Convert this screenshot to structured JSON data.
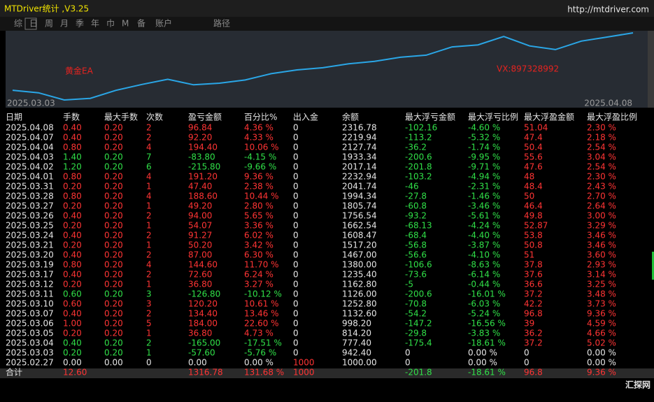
{
  "window": {
    "title": "MTDriver统计 ,V3.25",
    "url": "http://mtdriver.com"
  },
  "tabs": [
    "综",
    "日",
    "周",
    "月",
    "季",
    "年",
    "巾",
    "M",
    "备",
    "账户"
  ],
  "path_label": "路径",
  "chart": {
    "annotation_left": "黄金EA",
    "annotation_right": "VX:897328992",
    "start_date": "2025.03.03",
    "end_date": "2025.04.08"
  },
  "colors": {
    "profit": "#ff3434",
    "loss": "#30e048",
    "neutral": "#e6e6e6",
    "line": "#2aa6e6"
  },
  "table": {
    "header": [
      "日期",
      "手数",
      "最大手数",
      "次数",
      "盈亏金额",
      "百分比%",
      "出入金",
      "余额",
      "最大浮亏金额",
      "最大浮亏比例",
      "最大浮盈金额",
      "最大浮盈比例"
    ],
    "rows": [
      [
        "2025.04.08",
        "0.40",
        "0.20",
        "2",
        "96.84",
        "4.36 %",
        "0",
        "2316.78",
        "-102.16",
        "-4.60 %",
        "51.04",
        "2.30 %"
      ],
      [
        "2025.04.07",
        "0.40",
        "0.20",
        "2",
        "92.20",
        "4.33 %",
        "0",
        "2219.94",
        "-113.2",
        "-5.32 %",
        "47.4",
        "2.18 %"
      ],
      [
        "2025.04.04",
        "0.80",
        "0.20",
        "4",
        "194.40",
        "10.06 %",
        "0",
        "2127.74",
        "-36.2",
        "-1.74 %",
        "50.4",
        "2.54 %"
      ],
      [
        "2025.04.03",
        "1.40",
        "0.20",
        "7",
        "-83.80",
        "-4.15 %",
        "0",
        "1933.34",
        "-200.6",
        "-9.95 %",
        "55.6",
        "3.04 %"
      ],
      [
        "2025.04.02",
        "1.20",
        "0.20",
        "6",
        "-215.80",
        "-9.66 %",
        "0",
        "2017.14",
        "-201.8",
        "-9.71 %",
        "47.6",
        "2.54 %"
      ],
      [
        "2025.04.01",
        "0.80",
        "0.20",
        "4",
        "191.20",
        "9.36 %",
        "0",
        "2232.94",
        "-103.2",
        "-4.94 %",
        "48",
        "2.30 %"
      ],
      [
        "2025.03.31",
        "0.20",
        "0.20",
        "1",
        "47.40",
        "2.38 %",
        "0",
        "2041.74",
        "-46",
        "-2.31 %",
        "48.4",
        "2.43 %"
      ],
      [
        "2025.03.28",
        "0.80",
        "0.20",
        "4",
        "188.60",
        "10.44 %",
        "0",
        "1994.34",
        "-27.8",
        "-1.46 %",
        "50",
        "2.70 %"
      ],
      [
        "2025.03.27",
        "0.20",
        "0.20",
        "1",
        "49.20",
        "2.80 %",
        "0",
        "1805.74",
        "-60.8",
        "-3.46 %",
        "46.4",
        "2.64 %"
      ],
      [
        "2025.03.26",
        "0.40",
        "0.20",
        "2",
        "94.00",
        "5.65 %",
        "0",
        "1756.54",
        "-93.2",
        "-5.61 %",
        "49.8",
        "3.00 %"
      ],
      [
        "2025.03.25",
        "0.20",
        "0.20",
        "1",
        "54.07",
        "3.36 %",
        "0",
        "1662.54",
        "-68.13",
        "-4.24 %",
        "52.87",
        "3.29 %"
      ],
      [
        "2025.03.24",
        "0.40",
        "0.20",
        "2",
        "91.27",
        "6.02 %",
        "0",
        "1608.47",
        "-68.4",
        "-4.40 %",
        "53.8",
        "3.46 %"
      ],
      [
        "2025.03.21",
        "0.20",
        "0.20",
        "1",
        "50.20",
        "3.42 %",
        "0",
        "1517.20",
        "-56.8",
        "-3.87 %",
        "50.8",
        "3.46 %"
      ],
      [
        "2025.03.20",
        "0.40",
        "0.20",
        "2",
        "87.00",
        "6.30 %",
        "0",
        "1467.00",
        "-56.6",
        "-4.10 %",
        "51",
        "3.60 %"
      ],
      [
        "2025.03.19",
        "0.80",
        "0.20",
        "4",
        "144.60",
        "11.70 %",
        "0",
        "1380.00",
        "-106.6",
        "-8.63 %",
        "37.8",
        "2.93 %"
      ],
      [
        "2025.03.17",
        "0.40",
        "0.20",
        "2",
        "72.60",
        "6.24 %",
        "0",
        "1235.40",
        "-73.6",
        "-6.14 %",
        "37.6",
        "3.14 %"
      ],
      [
        "2025.03.12",
        "0.20",
        "0.20",
        "1",
        "36.80",
        "3.27 %",
        "0",
        "1162.80",
        "-5",
        "-0.44 %",
        "36.6",
        "3.25 %"
      ],
      [
        "2025.03.11",
        "0.60",
        "0.20",
        "3",
        "-126.80",
        "-10.12 %",
        "0",
        "1126.00",
        "-200.6",
        "-16.01 %",
        "37.2",
        "3.48 %"
      ],
      [
        "2025.03.10",
        "0.60",
        "0.20",
        "3",
        "120.20",
        "10.61 %",
        "0",
        "1252.80",
        "-70.8",
        "-6.03 %",
        "42.2",
        "3.73 %"
      ],
      [
        "2025.03.07",
        "0.40",
        "0.20",
        "2",
        "134.40",
        "13.46 %",
        "0",
        "1132.60",
        "-54.2",
        "-5.24 %",
        "96.8",
        "9.36 %"
      ],
      [
        "2025.03.06",
        "1.00",
        "0.20",
        "5",
        "184.00",
        "22.60 %",
        "0",
        "998.20",
        "-147.2",
        "-16.56 %",
        "39",
        "4.59 %"
      ],
      [
        "2025.03.05",
        "0.20",
        "0.20",
        "1",
        "36.80",
        "4.73 %",
        "0",
        "814.20",
        "-29.8",
        "-3.83 %",
        "36.2",
        "4.66 %"
      ],
      [
        "2025.03.04",
        "0.40",
        "0.20",
        "2",
        "-165.00",
        "-17.51 %",
        "0",
        "777.40",
        "-175.4",
        "-18.61 %",
        "37.2",
        "5.02 %"
      ],
      [
        "2025.03.03",
        "0.20",
        "0.20",
        "1",
        "-57.60",
        "-5.76 %",
        "0",
        "942.40",
        "0",
        "0.00 %",
        "0",
        "0.00 %"
      ],
      [
        "2025.02.27",
        "0.00",
        "0.00",
        "0",
        "0.00",
        "0.00 %",
        "1000",
        "1000.00",
        "0",
        "0.00 %",
        "0",
        "0.00 %"
      ]
    ],
    "total": {
      "label": "合计",
      "lots": "12.60",
      "pnl": "1316.78",
      "percent": "131.68 %",
      "deposit": "1000",
      "max_float_loss": "-201.8",
      "max_float_loss_pct": "-18.61 %",
      "max_float_profit": "96.8",
      "max_float_profit_pct": "9.36 %"
    }
  },
  "watermark": "汇探网"
}
